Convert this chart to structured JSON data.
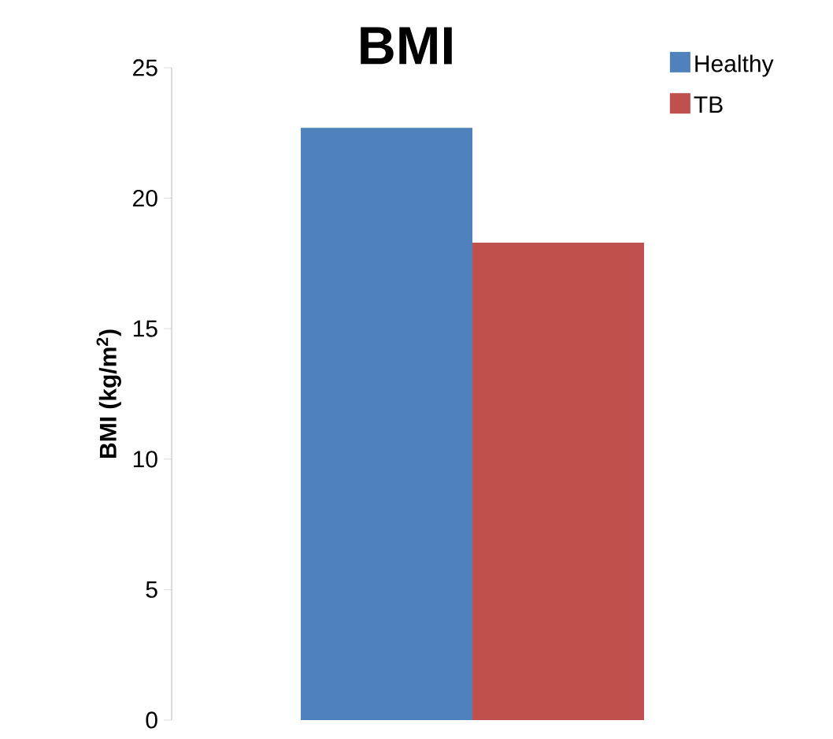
{
  "chart_data": {
    "type": "bar",
    "title": "BMI",
    "ylabel": "BMI (kg/m$^{2}$)",
    "categories": [
      null
    ],
    "series": [
      {
        "name": "Healthy",
        "color": "#4f81bd",
        "values": [
          22.7
        ]
      },
      {
        "name": "TB",
        "color": "#c0504d",
        "values": [
          18.3
        ]
      }
    ],
    "ylim": [
      0,
      25
    ],
    "yticks": [
      0,
      5,
      10,
      15,
      20,
      25
    ],
    "legend": "top right",
    "tick_labels": "y"
  }
}
